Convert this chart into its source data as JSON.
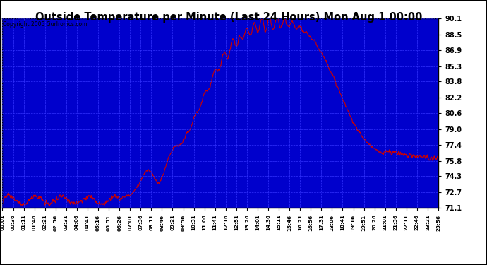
{
  "title": "Outside Temperature per Minute (Last 24 Hours) Mon Aug 1 00:00",
  "copyright": "Copyright 2005 Gurlronics.com",
  "line_color": "#cc0000",
  "plot_bg_color": "#0000cc",
  "ymin": 71.1,
  "ymax": 90.1,
  "yticks": [
    71.1,
    72.7,
    74.3,
    75.8,
    77.4,
    79.0,
    80.6,
    82.2,
    83.8,
    85.3,
    86.9,
    88.5,
    90.1
  ],
  "x_tick_labels": [
    "00:01",
    "00:36",
    "01:11",
    "01:46",
    "02:21",
    "02:56",
    "03:31",
    "04:06",
    "04:41",
    "05:16",
    "05:51",
    "06:26",
    "07:01",
    "07:36",
    "08:11",
    "08:46",
    "09:21",
    "09:56",
    "10:31",
    "11:06",
    "11:41",
    "12:16",
    "12:51",
    "13:26",
    "14:01",
    "14:36",
    "15:11",
    "15:46",
    "16:21",
    "16:56",
    "17:31",
    "18:06",
    "18:41",
    "19:16",
    "19:51",
    "20:26",
    "21:01",
    "21:36",
    "22:11",
    "22:46",
    "23:21",
    "23:56"
  ],
  "n_points": 1440
}
